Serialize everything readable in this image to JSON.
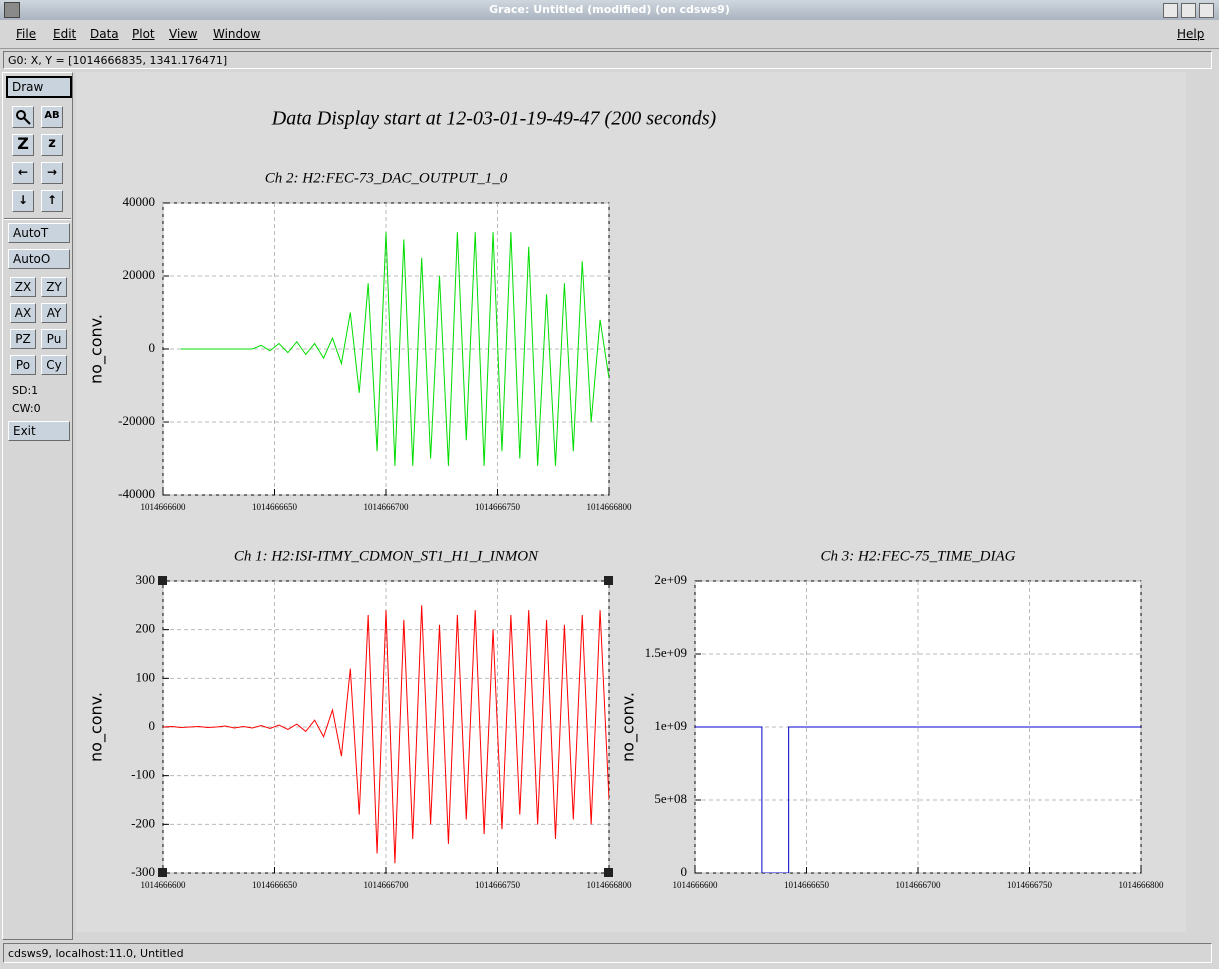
{
  "window": {
    "title": "Grace: Untitled (modified) (on cdsws9)"
  },
  "menu": {
    "items": [
      "File",
      "Edit",
      "Data",
      "Plot",
      "View",
      "Window"
    ],
    "help": "Help"
  },
  "locator": "G0: X, Y = [1014666835, 1341.176471]",
  "toolbar": {
    "draw": "Draw",
    "zoom_in": "Z",
    "zoom_out": "z",
    "auto_t": "AutoT",
    "auto_o": "AutoO",
    "buttons": [
      [
        "ZX",
        "ZY"
      ],
      [
        "AX",
        "AY"
      ],
      [
        "PZ",
        "Pu"
      ],
      [
        "Po",
        "Cy"
      ]
    ],
    "sd": "SD:1",
    "cw": "CW:0",
    "exit": "Exit"
  },
  "status": "cdsws9, localhost:11.0, Untitled",
  "canvas": {
    "title": "Data Display start at 12-03-01-19-49-47 (200 seconds)"
  },
  "chart_data": [
    {
      "type": "line",
      "title": "Ch 2: H2:FEC-73_DAC_OUTPUT_1_0",
      "y_label": "no_conv.",
      "color": "#00dd00",
      "grid": true,
      "xlim": [
        1014666600,
        1014666800
      ],
      "xticks": [
        1014666600,
        1014666650,
        1014666700,
        1014666750,
        1014666800
      ],
      "ylim": [
        -40000,
        40000
      ],
      "yticks": [
        -40000,
        -20000,
        0,
        20000,
        40000
      ],
      "x": [
        1014666608,
        1014666612,
        1014666616,
        1014666620,
        1014666624,
        1014666628,
        1014666632,
        1014666636,
        1014666640,
        1014666644,
        1014666648,
        1014666652,
        1014666656,
        1014666660,
        1014666664,
        1014666668,
        1014666672,
        1014666676,
        1014666680,
        1014666684,
        1014666688,
        1014666692,
        1014666696,
        1014666700,
        1014666704,
        1014666708,
        1014666712,
        1014666716,
        1014666720,
        1014666724,
        1014666728,
        1014666732,
        1014666736,
        1014666740,
        1014666744,
        1014666748,
        1014666752,
        1014666756,
        1014666760,
        1014666764,
        1014666768,
        1014666772,
        1014666776,
        1014666780,
        1014666784,
        1014666788,
        1014666792,
        1014666796,
        1014666800
      ],
      "values": [
        0,
        0,
        0,
        0,
        0,
        0,
        0,
        0,
        0,
        1000,
        -500,
        1500,
        -1000,
        2000,
        -1500,
        1500,
        -2500,
        3000,
        -4000,
        10000,
        -12000,
        18000,
        -28000,
        32000,
        -32000,
        30000,
        -32000,
        25000,
        -30000,
        20000,
        -32000,
        32000,
        -25000,
        32000,
        -32000,
        32000,
        -28000,
        32000,
        -30000,
        28000,
        -32000,
        15000,
        -32000,
        18000,
        -28000,
        24000,
        -20000,
        8000,
        -8000
      ]
    },
    {
      "type": "line",
      "title": "Ch 1: H2:ISI-ITMY_CDMON_ST1_H1_I_INMON",
      "y_label": "no_conv.",
      "color": "#ff0000",
      "grid": true,
      "xlim": [
        1014666600,
        1014666800
      ],
      "xticks": [
        1014666600,
        1014666650,
        1014666700,
        1014666750,
        1014666800
      ],
      "ylim": [
        -300,
        300
      ],
      "yticks": [
        -300,
        -200,
        -100,
        0,
        100,
        200,
        300
      ],
      "x": [
        1014666600,
        1014666604,
        1014666608,
        1014666612,
        1014666616,
        1014666620,
        1014666624,
        1014666628,
        1014666632,
        1014666636,
        1014666640,
        1014666644,
        1014666648,
        1014666652,
        1014666656,
        1014666660,
        1014666664,
        1014666668,
        1014666672,
        1014666676,
        1014666680,
        1014666684,
        1014666688,
        1014666692,
        1014666696,
        1014666700,
        1014666704,
        1014666708,
        1014666712,
        1014666716,
        1014666720,
        1014666724,
        1014666728,
        1014666732,
        1014666736,
        1014666740,
        1014666744,
        1014666748,
        1014666752,
        1014666756,
        1014666760,
        1014666764,
        1014666768,
        1014666772,
        1014666776,
        1014666780,
        1014666784,
        1014666788,
        1014666792,
        1014666796,
        1014666800
      ],
      "values": [
        0,
        1,
        -1,
        0,
        1,
        -1,
        0,
        2,
        -2,
        1,
        -2,
        3,
        -3,
        4,
        -5,
        6,
        -9,
        14,
        -20,
        35,
        -60,
        120,
        -180,
        230,
        -260,
        240,
        -280,
        220,
        -230,
        250,
        -200,
        210,
        -240,
        230,
        -190,
        240,
        -220,
        200,
        -210,
        230,
        -180,
        240,
        -200,
        220,
        -230,
        210,
        -190,
        230,
        -200,
        240,
        -150
      ]
    },
    {
      "type": "line",
      "title": "Ch 3: H2:FEC-75_TIME_DIAG",
      "y_label": "no_conv.",
      "color": "#0000cc",
      "grid": true,
      "xlim": [
        1014666600,
        1014666800
      ],
      "xticks": [
        1014666600,
        1014666650,
        1014666700,
        1014666750,
        1014666800
      ],
      "ylim": [
        0,
        2000000000
      ],
      "yticks": [
        0,
        {
          "value": 500000000,
          "label": "5e+08"
        },
        {
          "value": 1000000000,
          "label": "1e+09"
        },
        {
          "value": 1500000000,
          "label": "1.5e+09"
        },
        {
          "value": 2000000000,
          "label": "2e+09"
        }
      ],
      "x": [
        1014666600,
        1014666630,
        1014666630,
        1014666642,
        1014666642,
        1014666800
      ],
      "values": [
        1000000000,
        1000000000,
        0,
        0,
        1000000000,
        1000000000
      ]
    }
  ]
}
